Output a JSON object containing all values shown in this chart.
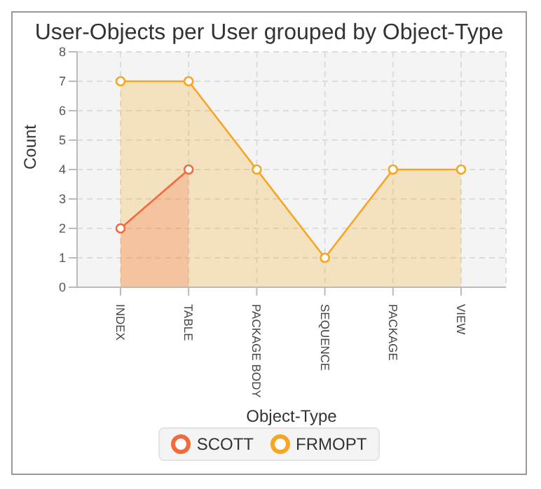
{
  "chart_data": {
    "type": "area",
    "title": "User-Objects per User grouped by Object-Type",
    "xlabel": "Object-Type",
    "ylabel": "Count",
    "categories": [
      "INDEX",
      "TABLE",
      "PACKAGE BODY",
      "SEQUENCE",
      "PACKAGE",
      "VIEW"
    ],
    "series": [
      {
        "name": "SCOTT",
        "color": "#f26b3a",
        "values": [
          2,
          4,
          null,
          null,
          null,
          null
        ]
      },
      {
        "name": "FRMOPT",
        "color": "#f5a623",
        "values": [
          7,
          7,
          4,
          1,
          4,
          4
        ]
      }
    ],
    "ylim": [
      0,
      8
    ],
    "yticks": [
      0,
      1,
      2,
      3,
      4,
      5,
      6,
      7,
      8
    ],
    "grid": true,
    "legend": "bottom",
    "marker": "circle"
  }
}
